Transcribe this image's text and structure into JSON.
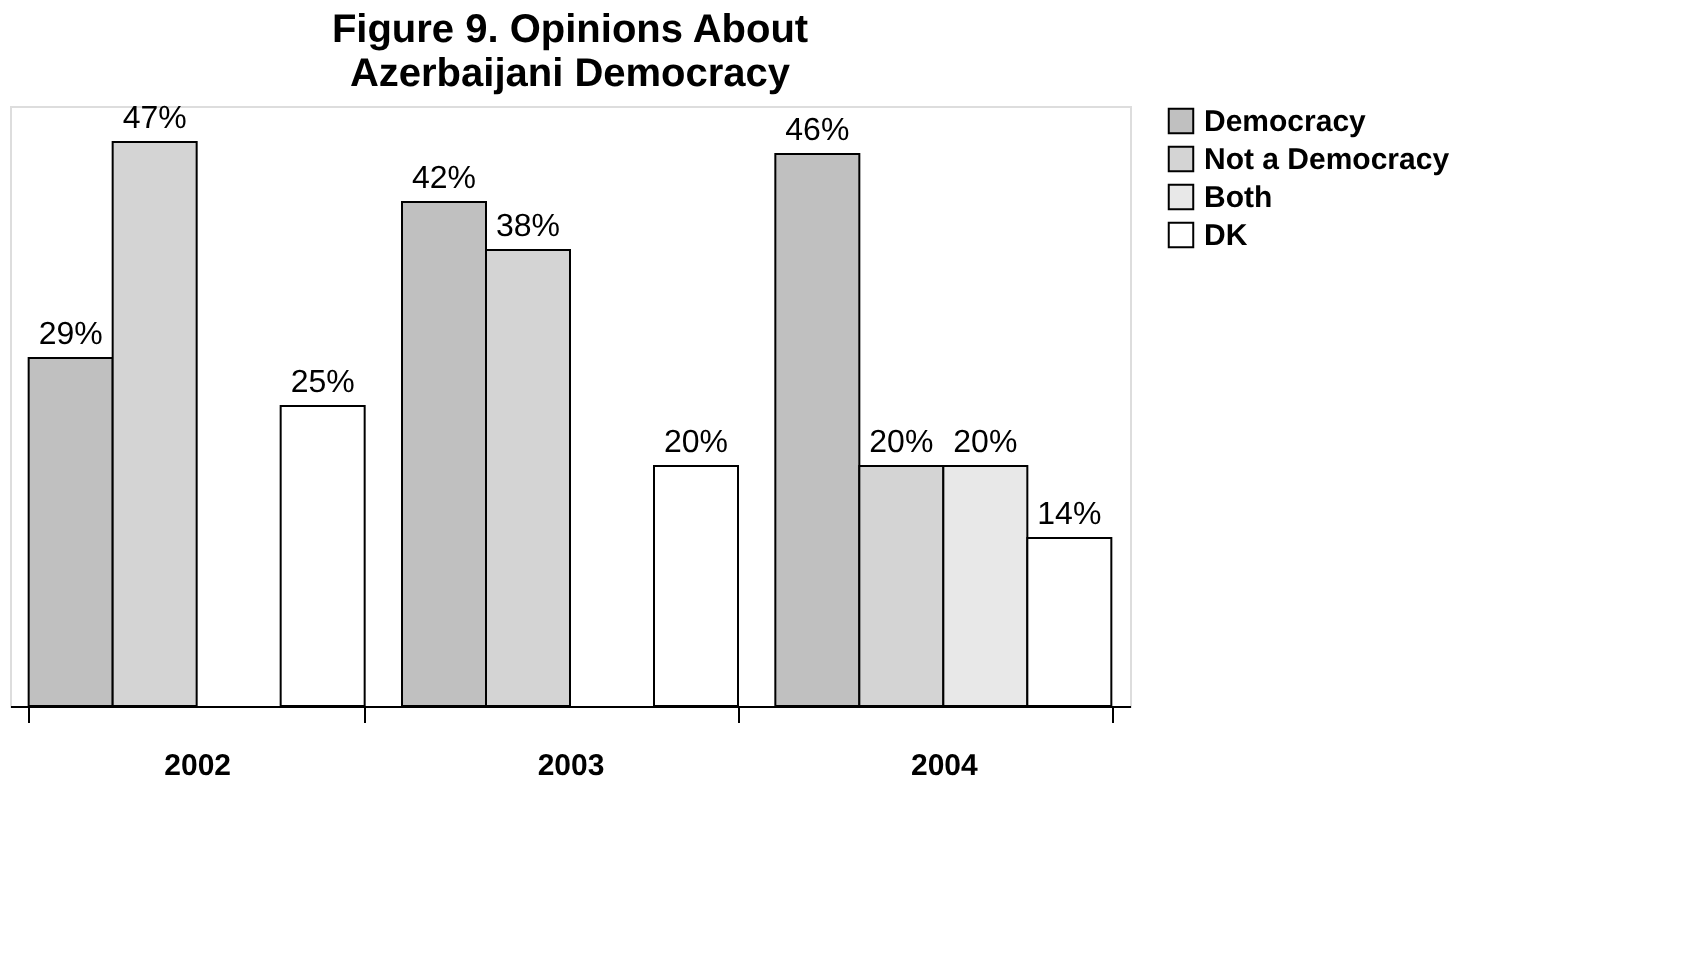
{
  "chart_data": {
    "type": "bar",
    "title": "Figure 9. Opinions About Azerbaijani Democracy",
    "categories": [
      "2002",
      "2003",
      "2004"
    ],
    "series": [
      {
        "name": "Democracy",
        "color": "#c0c0c0",
        "values": [
          29,
          42,
          46
        ],
        "value_labels": [
          "29%",
          "42%",
          "46%"
        ]
      },
      {
        "name": "Not a Democracy",
        "color": "#d4d4d4",
        "values": [
          47,
          38,
          20
        ],
        "value_labels": [
          "47%",
          "38%",
          "20%"
        ]
      },
      {
        "name": "Both",
        "color": "#e8e8e8",
        "values": [
          null,
          null,
          20
        ],
        "value_labels": [
          null,
          null,
          "20%"
        ]
      },
      {
        "name": "DK",
        "color": "#ffffff",
        "values": [
          25,
          20,
          14
        ],
        "value_labels": [
          "25%",
          "20%",
          "14%"
        ]
      }
    ],
    "legend": "right",
    "grid": false
  }
}
